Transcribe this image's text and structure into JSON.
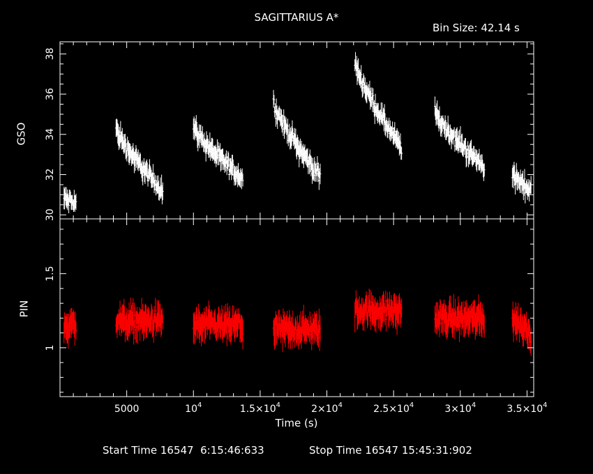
{
  "header": {
    "title": "SAGITTARIUS A*",
    "bin_size": "Bin Size: 42.14 s"
  },
  "footer": {
    "start_time": "Start Time 16547  6:15:46:633",
    "stop_time": "Stop Time 16547 15:45:31:902"
  },
  "colors": {
    "gso": "#ffffff",
    "pin": "#ff0000",
    "axes": "#ffffff",
    "background": "#000000"
  },
  "chart_data": [
    {
      "type": "scatter",
      "panel": "top",
      "ylabel": "GSO",
      "xlim": [
        0,
        35500
      ],
      "ylim": [
        29.8,
        38.6
      ],
      "y_ticks": [
        30,
        32,
        34,
        36,
        38
      ],
      "y_tick_labels": [
        "30",
        "32",
        "34",
        "36",
        "38"
      ],
      "error_bars": true,
      "segments": [
        {
          "x": [
            300,
            1200
          ],
          "y": [
            30.8,
            30.6
          ]
        },
        {
          "x": [
            4200,
            7700
          ],
          "y": [
            34.3,
            31.2
          ]
        },
        {
          "x": [
            10000,
            13700
          ],
          "y": [
            34.4,
            31.8
          ]
        },
        {
          "x": [
            16000,
            19500
          ],
          "y": [
            35.6,
            31.9
          ]
        },
        {
          "x": [
            22100,
            25600
          ],
          "y": [
            37.6,
            33.3
          ]
        },
        {
          "x": [
            28100,
            31800
          ],
          "y": [
            35.1,
            32.4
          ]
        },
        {
          "x": [
            33900,
            35300
          ],
          "y": [
            32.0,
            31.2
          ]
        }
      ]
    },
    {
      "type": "scatter",
      "panel": "bottom",
      "ylabel": "PIN",
      "xlabel": "Time (s)",
      "xlim": [
        0,
        35500
      ],
      "ylim": [
        0.67,
        1.87
      ],
      "y_ticks": [
        1,
        1.5
      ],
      "y_tick_labels": [
        "1",
        "1.5"
      ],
      "x_ticks": [
        5000,
        10000,
        15000,
        20000,
        25000,
        30000,
        35000
      ],
      "x_tick_labels": [
        {
          "base": "5000",
          "exp": ""
        },
        {
          "base": "10",
          "exp": "4"
        },
        {
          "base": "1.5×10",
          "exp": "4"
        },
        {
          "base": "2×10",
          "exp": "4"
        },
        {
          "base": "2.5×10",
          "exp": "4"
        },
        {
          "base": "3×10",
          "exp": "4"
        },
        {
          "base": "3.5×10",
          "exp": "4"
        }
      ],
      "error_bars": true,
      "segments": [
        {
          "x": [
            300,
            1200
          ],
          "y": [
            1.15,
            1.15
          ]
        },
        {
          "x": [
            4200,
            7700
          ],
          "y": [
            1.18,
            1.18
          ]
        },
        {
          "x": [
            10000,
            13700
          ],
          "y": [
            1.15,
            1.15
          ]
        },
        {
          "x": [
            16000,
            19500
          ],
          "y": [
            1.12,
            1.12
          ]
        },
        {
          "x": [
            22100,
            25600
          ],
          "y": [
            1.25,
            1.25
          ]
        },
        {
          "x": [
            28100,
            31800
          ],
          "y": [
            1.2,
            1.2
          ]
        },
        {
          "x": [
            33900,
            35300
          ],
          "y": [
            1.2,
            1.1
          ]
        }
      ]
    }
  ]
}
